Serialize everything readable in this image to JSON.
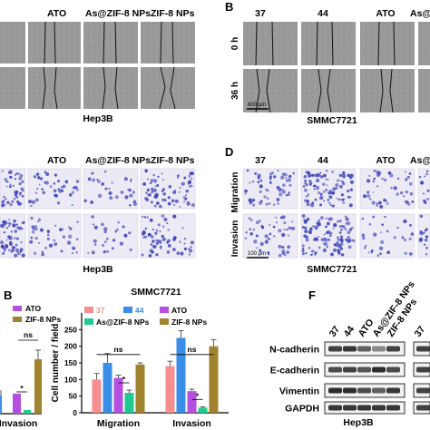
{
  "panels": {
    "A": {
      "letter": "",
      "col_headers": [
        "",
        "ATO",
        "As@ZIF-8 NPs",
        "ZIF-8 NPs"
      ],
      "cell_line": "Hep3B"
    },
    "B": {
      "letter": "B",
      "col_headers": [
        "37",
        "44",
        "ATO",
        "As@"
      ],
      "row_labels": [
        "0 h",
        "36 h"
      ],
      "scale_bar": "600 μm",
      "cell_line": "SMMC7721"
    },
    "C": {
      "letter": "",
      "col_headers": [
        "",
        "ATO",
        "As@ZIF-8 NPs",
        "ZIF-8 NPs"
      ],
      "cell_line": "Hep3B"
    },
    "D": {
      "letter": "D",
      "col_headers": [
        "37",
        "44",
        "ATO",
        "As@"
      ],
      "row_labels": [
        "Migration",
        "Invasion"
      ],
      "scale_bar": "100 μm",
      "cell_line": "SMMC7721"
    },
    "E_left": {
      "letter": "B",
      "legend": [
        "ATO",
        "ZIF-8 NPs"
      ],
      "xlabel_partial": "Invasion",
      "ns_label": "ns",
      "star": "*"
    },
    "F": {
      "letter": "F",
      "lanes": [
        "37",
        "44",
        "ATO",
        "As@ZIF-8 NPs",
        "ZIF-8 NPs"
      ],
      "right_lane": "37",
      "proteins": [
        "N-cadherin",
        "E-cadherin",
        "Vimentin",
        "GAPDH"
      ],
      "cell_line": "Hep3B"
    }
  },
  "colors": {
    "c37": "#f58e8e",
    "c44": "#3a8ee8",
    "cATO": "#b64fe0",
    "cAsZIF": "#1fc98f",
    "cZIF": "#a0832d",
    "stain": "#3e43b8"
  },
  "chart_data": {
    "type": "bar",
    "title": "SMMC7721",
    "ylabel": "Cell number / field",
    "categories": [
      "Migration",
      "Invasion"
    ],
    "ylim": [
      0,
      300
    ],
    "yticks": [
      0,
      50,
      100,
      150,
      200,
      250
    ],
    "series": [
      {
        "name": "37",
        "values": [
          100,
          140
        ],
        "errors": [
          18,
          15
        ]
      },
      {
        "name": "44",
        "values": [
          150,
          225
        ],
        "errors": [
          28,
          22
        ]
      },
      {
        "name": "ATO",
        "values": [
          105,
          65
        ],
        "errors": [
          8,
          6
        ]
      },
      {
        "name": "As@ZIF-8 NPs",
        "values": [
          60,
          15
        ],
        "errors": [
          8,
          3
        ]
      },
      {
        "name": "ZIF-8 NPs",
        "values": [
          145,
          200
        ],
        "errors": [
          5,
          20
        ]
      }
    ],
    "annotations": [
      "ns",
      "*",
      "ns",
      "*"
    ]
  }
}
